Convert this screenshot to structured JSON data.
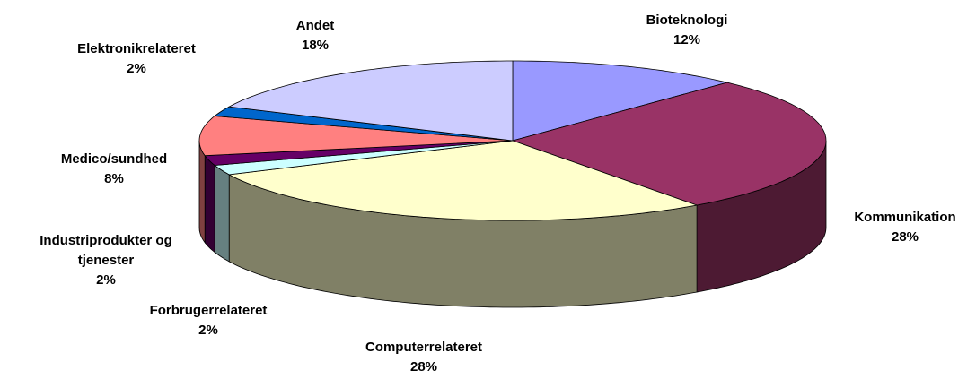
{
  "chart_data": {
    "type": "pie3d",
    "categories": [
      "Bioteknologi",
      "Kommunikation",
      "Computerrelateret",
      "Forbrugerrelateret",
      "Industriprodukter og tjenester",
      "Medico/sundhed",
      "Elektronikrelateret",
      "Andet"
    ],
    "values": [
      12,
      28,
      28,
      2,
      2,
      8,
      2,
      18
    ],
    "value_labels": [
      "12%",
      "28%",
      "28%",
      "2%",
      "2%",
      "8%",
      "2%",
      "18%"
    ],
    "colors": [
      "#9999ff",
      "#993366",
      "#ffffcc",
      "#ccffff",
      "#660066",
      "#ff8080",
      "#0066cc",
      "#ccccff"
    ]
  }
}
